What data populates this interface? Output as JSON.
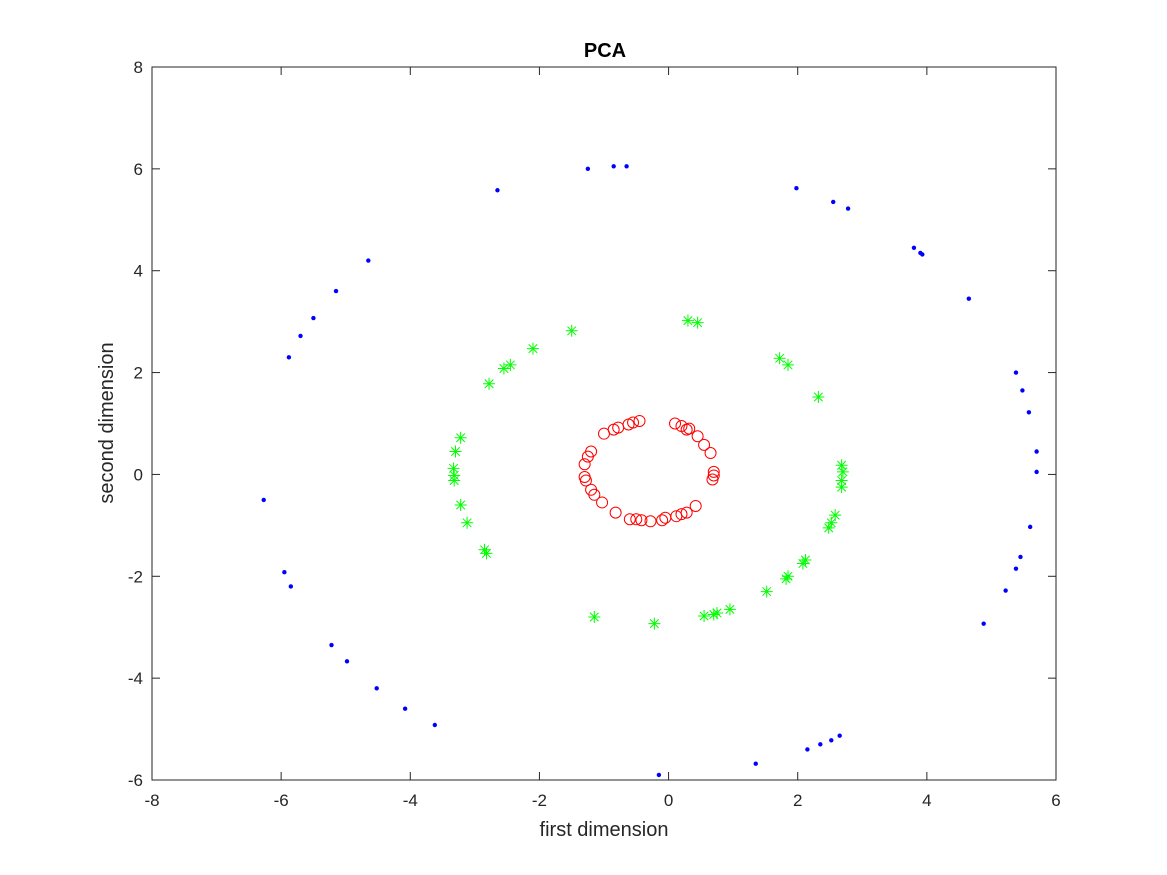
{
  "chart_data": {
    "type": "scatter",
    "title": "PCA",
    "xlabel": "first dimension",
    "ylabel": "second dimension",
    "xlim": [
      -8,
      6
    ],
    "ylim": [
      -6,
      8
    ],
    "xticks": [
      -8,
      -6,
      -4,
      -2,
      0,
      2,
      4,
      6
    ],
    "yticks": [
      -6,
      -4,
      -2,
      0,
      2,
      4,
      6,
      8
    ],
    "grid": false,
    "series": [
      {
        "marker": "dot",
        "color": "#0000ff",
        "points": [
          [
            -1.25,
            6.0
          ],
          [
            -0.85,
            6.05
          ],
          [
            -0.65,
            6.05
          ],
          [
            -2.65,
            5.58
          ],
          [
            -4.65,
            4.2
          ],
          [
            -5.15,
            3.6
          ],
          [
            -5.5,
            3.07
          ],
          [
            -5.7,
            2.72
          ],
          [
            -5.88,
            2.3
          ],
          [
            -6.27,
            -0.5
          ],
          [
            -5.95,
            -1.92
          ],
          [
            -5.85,
            -2.2
          ],
          [
            -5.22,
            -3.35
          ],
          [
            -4.98,
            -3.67
          ],
          [
            -4.52,
            -4.2
          ],
          [
            -4.08,
            -4.6
          ],
          [
            -3.62,
            -4.92
          ],
          [
            -0.15,
            -5.9
          ],
          [
            1.35,
            -5.68
          ],
          [
            2.15,
            -5.4
          ],
          [
            2.35,
            -5.3
          ],
          [
            2.52,
            -5.22
          ],
          [
            2.65,
            -5.13
          ],
          [
            4.88,
            -2.93
          ],
          [
            5.22,
            -2.28
          ],
          [
            5.38,
            -1.85
          ],
          [
            5.45,
            -1.62
          ],
          [
            5.6,
            -1.03
          ],
          [
            5.7,
            0.05
          ],
          [
            5.7,
            0.45
          ],
          [
            5.58,
            1.22
          ],
          [
            5.48,
            1.65
          ],
          [
            5.38,
            2.0
          ],
          [
            4.65,
            3.45
          ],
          [
            3.93,
            4.32
          ],
          [
            3.9,
            4.35
          ],
          [
            3.8,
            4.45
          ],
          [
            2.78,
            5.22
          ],
          [
            2.55,
            5.35
          ],
          [
            1.98,
            5.62
          ]
        ]
      },
      {
        "marker": "asterisk",
        "color": "#00ff00",
        "points": [
          [
            -1.5,
            2.82
          ],
          [
            0.3,
            3.02
          ],
          [
            0.45,
            2.98
          ],
          [
            -2.1,
            2.47
          ],
          [
            -2.45,
            2.15
          ],
          [
            -2.55,
            2.08
          ],
          [
            -2.78,
            1.78
          ],
          [
            1.72,
            2.28
          ],
          [
            1.85,
            2.15
          ],
          [
            2.32,
            1.52
          ],
          [
            -3.22,
            0.72
          ],
          [
            -3.3,
            0.45
          ],
          [
            -3.33,
            0.12
          ],
          [
            -3.32,
            -0.02
          ],
          [
            -3.32,
            -0.12
          ],
          [
            -3.22,
            -0.6
          ],
          [
            -3.12,
            -0.95
          ],
          [
            -2.85,
            -1.48
          ],
          [
            -2.82,
            -1.55
          ],
          [
            2.68,
            0.18
          ],
          [
            2.7,
            0.05
          ],
          [
            2.68,
            -0.12
          ],
          [
            2.68,
            -0.25
          ],
          [
            2.58,
            -0.8
          ],
          [
            2.52,
            -0.95
          ],
          [
            2.48,
            -1.05
          ],
          [
            2.12,
            -1.68
          ],
          [
            2.08,
            -1.75
          ],
          [
            1.85,
            -2.0
          ],
          [
            1.82,
            -2.05
          ],
          [
            1.52,
            -2.3
          ],
          [
            0.95,
            -2.65
          ],
          [
            0.75,
            -2.72
          ],
          [
            0.7,
            -2.75
          ],
          [
            0.55,
            -2.78
          ],
          [
            -1.15,
            -2.8
          ],
          [
            -0.22,
            -2.93
          ]
        ]
      },
      {
        "marker": "circle",
        "color": "#ff0000",
        "points": [
          [
            -1.2,
            0.45
          ],
          [
            -1.25,
            0.35
          ],
          [
            -1.3,
            0.2
          ],
          [
            -1.3,
            -0.05
          ],
          [
            -1.28,
            -0.12
          ],
          [
            -1.2,
            -0.3
          ],
          [
            -1.15,
            -0.4
          ],
          [
            -1.03,
            -0.55
          ],
          [
            -0.82,
            -0.75
          ],
          [
            -0.6,
            -0.88
          ],
          [
            -0.5,
            -0.88
          ],
          [
            -0.42,
            -0.9
          ],
          [
            -0.28,
            -0.92
          ],
          [
            -0.1,
            -0.9
          ],
          [
            -0.05,
            -0.85
          ],
          [
            0.12,
            -0.82
          ],
          [
            0.2,
            -0.78
          ],
          [
            0.28,
            -0.75
          ],
          [
            0.42,
            -0.62
          ],
          [
            -1.0,
            0.8
          ],
          [
            -0.85,
            0.88
          ],
          [
            -0.78,
            0.92
          ],
          [
            -0.62,
            0.98
          ],
          [
            -0.55,
            1.02
          ],
          [
            -0.45,
            1.05
          ],
          [
            0.1,
            1.0
          ],
          [
            0.2,
            0.95
          ],
          [
            0.28,
            0.88
          ],
          [
            0.32,
            0.9
          ],
          [
            0.45,
            0.75
          ],
          [
            0.55,
            0.58
          ],
          [
            0.65,
            0.42
          ],
          [
            0.7,
            0.05
          ],
          [
            0.7,
            -0.02
          ],
          [
            0.68,
            -0.1
          ]
        ]
      }
    ]
  }
}
